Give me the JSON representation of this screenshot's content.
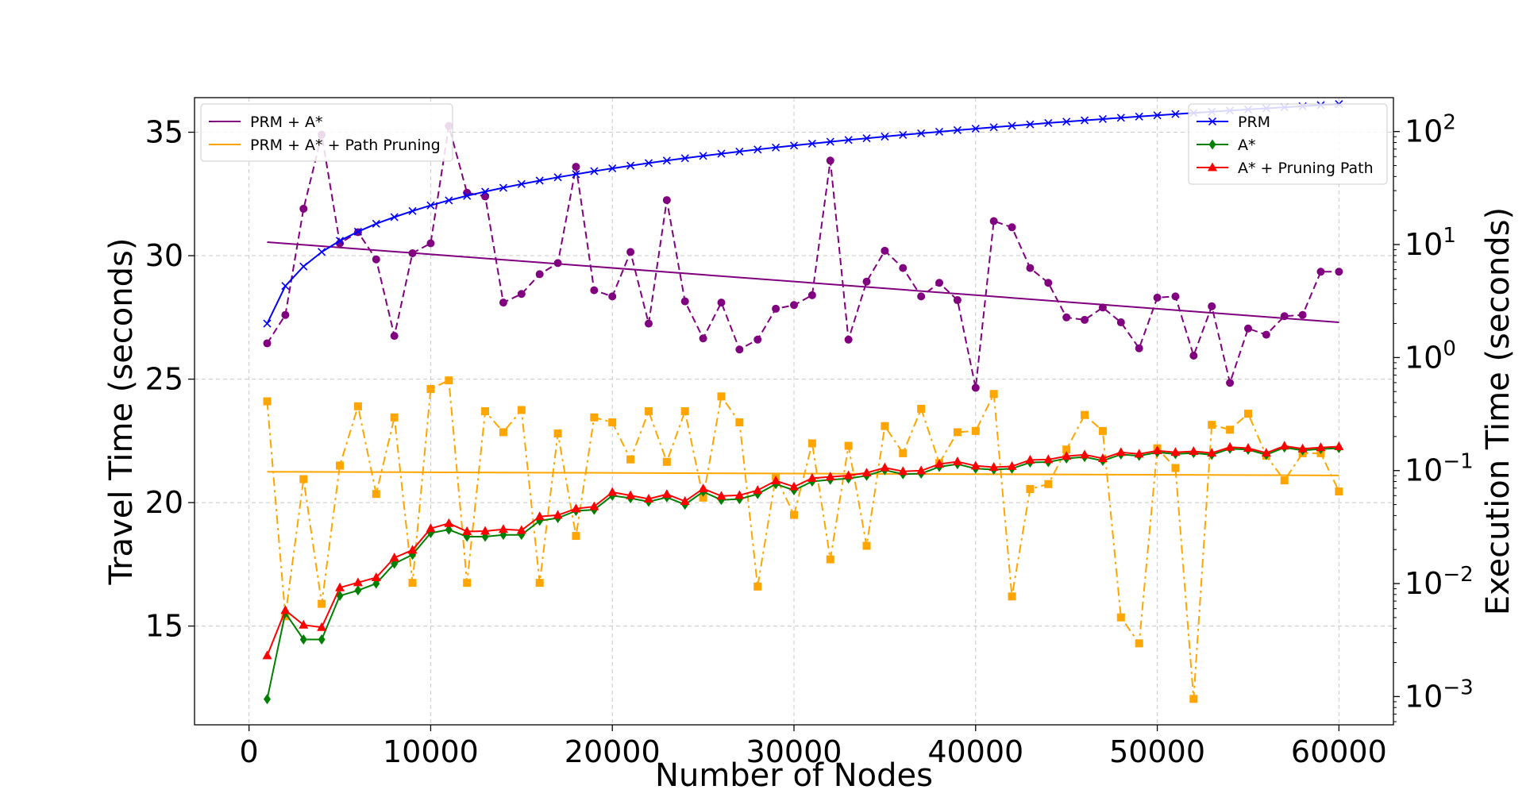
{
  "chart_data": {
    "type": "line",
    "xlabel": "Number of Nodes",
    "ylabel_left": "Travel Time (seconds)",
    "ylabel_right": "Execution Time (seconds)",
    "xlim": [
      -3000,
      63000
    ],
    "ylim_left": [
      11.0,
      36.4
    ],
    "ylim_right_log": [
      -3.25,
      2.3
    ],
    "right_axis_scale": "log",
    "grid": true,
    "x_ticks": [
      0,
      10000,
      20000,
      30000,
      40000,
      50000,
      60000
    ],
    "y_left_ticks": [
      15,
      20,
      25,
      30,
      35
    ],
    "y_right_ticks": [
      {
        "base": "10",
        "exp": "2",
        "value": 100
      },
      {
        "base": "10",
        "exp": "1",
        "value": 10
      },
      {
        "base": "10",
        "exp": "0",
        "value": 1
      },
      {
        "base": "10",
        "exp": "−1",
        "value": 0.1
      },
      {
        "base": "10",
        "exp": "−2",
        "value": 0.01
      },
      {
        "base": "10",
        "exp": "−3",
        "value": 0.001
      }
    ],
    "legend_left": {
      "placement": "upper-left",
      "entries": [
        {
          "label": "PRM + A*",
          "color": "#800080"
        },
        {
          "label": "PRM + A* + Path Pruning",
          "color": "#ffa500"
        }
      ]
    },
    "legend_right": {
      "placement": "upper-right",
      "entries": [
        {
          "label": "PRM",
          "color": "#0000ff",
          "marker": "x"
        },
        {
          "label": "A*",
          "color": "#008000",
          "marker": "diamond"
        },
        {
          "label": "A* + Pruning Path",
          "color": "#ff0000",
          "marker": "triangle"
        }
      ]
    },
    "x": [
      1000,
      2000,
      3000,
      4000,
      5000,
      6000,
      7000,
      8000,
      9000,
      10000,
      11000,
      12000,
      13000,
      14000,
      15000,
      16000,
      17000,
      18000,
      19000,
      20000,
      21000,
      22000,
      23000,
      24000,
      25000,
      26000,
      27000,
      28000,
      29000,
      30000,
      31000,
      32000,
      33000,
      34000,
      35000,
      36000,
      37000,
      38000,
      39000,
      40000,
      41000,
      42000,
      43000,
      44000,
      45000,
      46000,
      47000,
      48000,
      49000,
      50000,
      51000,
      52000,
      53000,
      54000,
      55000,
      56000,
      57000,
      58000,
      59000,
      60000
    ],
    "series": [
      {
        "name": "PRM + A*",
        "axis": "left",
        "color": "#800080",
        "style": "dashed",
        "marker": "circle",
        "values": [
          26.45,
          27.6,
          31.9,
          34.9,
          30.5,
          30.95,
          29.85,
          26.75,
          30.1,
          30.5,
          35.25,
          32.55,
          32.4,
          28.1,
          28.45,
          29.25,
          29.7,
          33.6,
          28.6,
          28.35,
          30.15,
          27.25,
          32.25,
          28.15,
          26.65,
          28.1,
          26.2,
          26.6,
          27.85,
          28,
          28.4,
          33.85,
          26.6,
          28.95,
          30.2,
          29.5,
          28.35,
          28.9,
          28.2,
          24.65,
          31.4,
          31.15,
          29.5,
          28.9,
          27.5,
          27.4,
          27.9,
          27.3,
          26.25,
          28.3,
          28.35,
          25.95,
          27.95,
          24.85,
          27.05,
          26.8,
          27.55,
          27.6,
          29.35,
          29.35
        ]
      },
      {
        "name": "PRM + A* + Path Pruning",
        "axis": "left",
        "color": "#ffa500",
        "style": "dashdot",
        "marker": "square",
        "values": [
          24.1,
          15.4,
          20.95,
          15.9,
          21.5,
          23.9,
          20.35,
          23.45,
          16.75,
          24.6,
          24.95,
          16.75,
          23.7,
          22.85,
          23.75,
          16.75,
          22.8,
          18.65,
          23.45,
          23.25,
          21.75,
          23.7,
          21.65,
          23.7,
          20.2,
          24.3,
          23.25,
          16.6,
          21.05,
          19.5,
          22.4,
          17.7,
          22.3,
          18.25,
          23.1,
          22,
          23.8,
          21.6,
          22.85,
          22.9,
          24.4,
          16.2,
          20.55,
          20.75,
          22.15,
          23.55,
          22.9,
          15.35,
          14.3,
          22.2,
          21.4,
          12.05,
          23.15,
          22.95,
          23.6,
          21.9,
          20.9,
          22,
          22,
          20.45
        ]
      },
      {
        "name": "PRM",
        "axis": "right",
        "color": "#0000ff",
        "style": "solid",
        "marker": "x",
        "values": [
          2.0,
          4.3,
          6.4,
          8.6,
          10.8,
          13.0,
          15.3,
          17.5,
          19.8,
          22.2,
          24.6,
          27.0,
          29.4,
          31.8,
          34.3,
          36.8,
          39.4,
          41.9,
          44.6,
          47.2,
          49.9,
          52.6,
          55.3,
          58.1,
          60.9,
          63.7,
          66.5,
          69.4,
          72.3,
          75.2,
          78.2,
          81.2,
          84.2,
          87.2,
          90.3,
          93.4,
          96.5,
          99.6,
          102.8,
          106.0,
          109.2,
          112.4,
          115.7,
          119.0,
          122.3,
          125.6,
          129.0,
          132.4,
          135.8,
          139.2,
          142.7,
          146.2,
          149.7,
          153.2,
          156.8,
          160.4,
          164.0,
          167.6,
          171.3,
          175.0
        ]
      },
      {
        "name": "A*",
        "axis": "right",
        "color": "#008000",
        "style": "solid",
        "marker": "diamond",
        "values": [
          0.00095,
          0.0055,
          0.0032,
          0.0032,
          0.0078,
          0.0087,
          0.01,
          0.015,
          0.018,
          0.028,
          0.03,
          0.026,
          0.026,
          0.027,
          0.027,
          0.036,
          0.038,
          0.044,
          0.045,
          0.06,
          0.057,
          0.053,
          0.058,
          0.05,
          0.065,
          0.055,
          0.056,
          0.062,
          0.076,
          0.067,
          0.08,
          0.083,
          0.085,
          0.09,
          0.101,
          0.093,
          0.094,
          0.108,
          0.114,
          0.104,
          0.102,
          0.104,
          0.118,
          0.119,
          0.128,
          0.132,
          0.122,
          0.139,
          0.135,
          0.145,
          0.14,
          0.143,
          0.138,
          0.156,
          0.153,
          0.138,
          0.16,
          0.151,
          0.155,
          0.158
        ]
      },
      {
        "name": "A* + Pruning Path",
        "axis": "right",
        "color": "#ff0000",
        "style": "solid",
        "marker": "triangle",
        "values": [
          0.0023,
          0.0058,
          0.0043,
          0.0041,
          0.0092,
          0.0102,
          0.0113,
          0.0169,
          0.0198,
          0.0307,
          0.0341,
          0.0289,
          0.0291,
          0.0302,
          0.0296,
          0.0392,
          0.0403,
          0.046,
          0.048,
          0.0643,
          0.0602,
          0.0561,
          0.0617,
          0.0535,
          0.0691,
          0.0595,
          0.0604,
          0.0669,
          0.0812,
          0.0719,
          0.0855,
          0.088,
          0.0904,
          0.0955,
          0.1061,
          0.0984,
          0.0998,
          0.114,
          0.12,
          0.11,
          0.107,
          0.109,
          0.124,
          0.125,
          0.134,
          0.138,
          0.128,
          0.145,
          0.14,
          0.15,
          0.145,
          0.148,
          0.143,
          0.161,
          0.158,
          0.143,
          0.165,
          0.156,
          0.16,
          0.163
        ]
      },
      {
        "name": "PRM + A*",
        "axis": "left",
        "color": "#800080",
        "style": "solid",
        "marker": "none",
        "role": "trend",
        "endpoints_x": [
          1000,
          60000
        ],
        "endpoints_y": [
          30.55,
          27.3
        ]
      },
      {
        "name": "PRM + A* + Path Pruning",
        "axis": "left",
        "color": "#ffa500",
        "style": "solid",
        "marker": "none",
        "role": "trend",
        "endpoints_x": [
          1000,
          60000
        ],
        "endpoints_y": [
          21.25,
          21.1
        ]
      }
    ]
  }
}
